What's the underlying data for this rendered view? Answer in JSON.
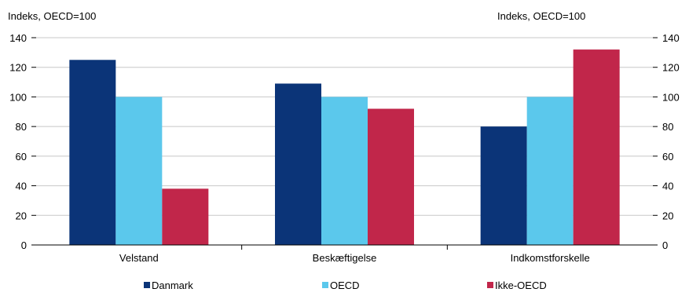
{
  "chart_data": {
    "type": "bar",
    "left_axis_unit": "Indeks, OECD=100",
    "right_axis_unit": "Indeks, OECD=100",
    "categories": [
      "Velstand",
      "Beskæftigelse",
      "Indkomstforskelle"
    ],
    "series": [
      {
        "name": "Danmark",
        "values": [
          125,
          109,
          80
        ]
      },
      {
        "name": "OECD",
        "values": [
          100,
          100,
          100
        ]
      },
      {
        "name": "Ikke-OECD",
        "values": [
          38,
          92,
          132
        ]
      }
    ],
    "ylim": [
      0,
      140
    ],
    "yticks": [
      0,
      20,
      40,
      60,
      80,
      100,
      120,
      140
    ],
    "grid": true,
    "legend_position": "bottom",
    "colors": [
      "#0b3478",
      "#5bc8ec",
      "#c1264a"
    ],
    "grid_color": "#c8c8c8"
  }
}
